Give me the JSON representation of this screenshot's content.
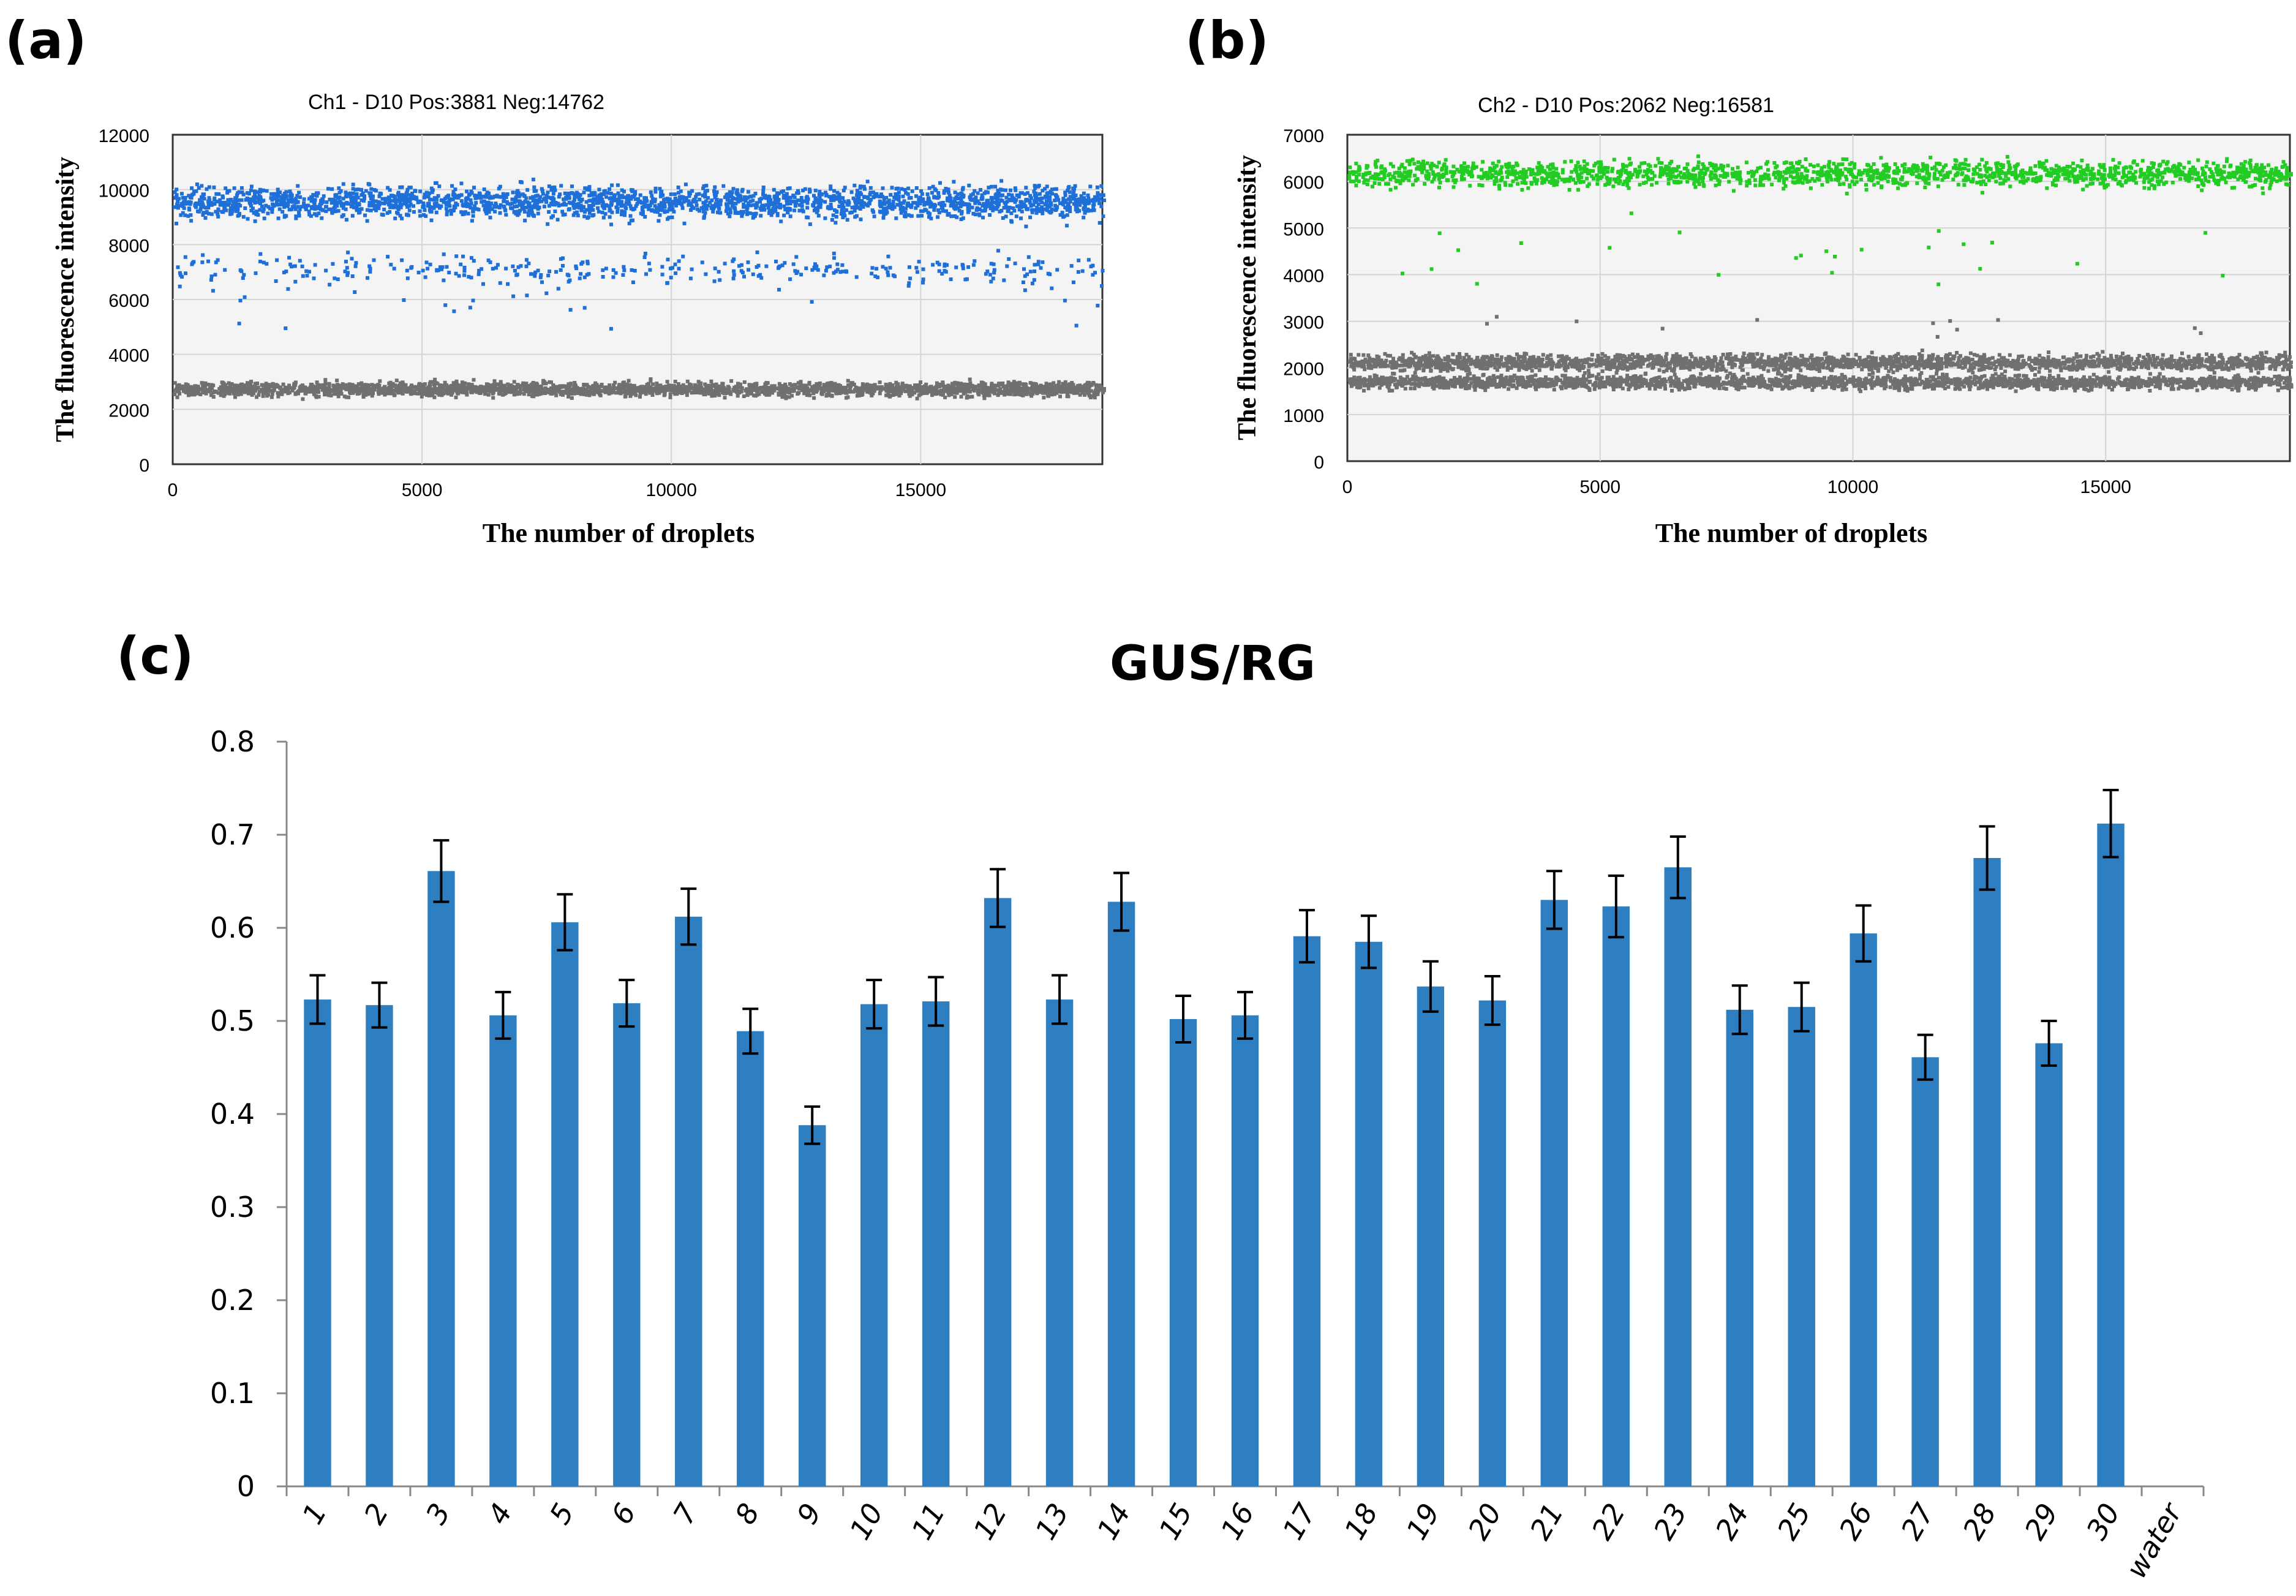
{
  "colors": {
    "ch1_positive": "#1f6fd8",
    "ch2_positive": "#22cc22",
    "negative": "#707070",
    "bar": "#2e7fc1",
    "plot_bg": "#f4f4f4",
    "grid": "#d4d4d4"
  },
  "chart_data": [
    {
      "id": "a",
      "type": "scatter",
      "panel_label": "(a)",
      "title": "Ch1 - D10 Pos:3881 Neg:14762",
      "xlabel": "The number of droplets",
      "ylabel": "The fluorescence intensity",
      "xlim": [
        0,
        18643
      ],
      "ylim": [
        0,
        12000
      ],
      "x_ticks": [
        0,
        5000,
        10000,
        15000
      ],
      "y_ticks": [
        0,
        2000,
        4000,
        6000,
        8000,
        10000,
        12000
      ],
      "grid": true,
      "series": [
        {
          "name": "Positive",
          "count": 3881,
          "main_band": [
            8900,
            10300
          ],
          "sub_band": [
            6500,
            7800
          ],
          "color_key": "ch1_positive"
        },
        {
          "name": "Negative",
          "count": 14762,
          "main_band": [
            2500,
            3100
          ],
          "color_key": "negative"
        }
      ]
    },
    {
      "id": "b",
      "type": "scatter",
      "panel_label": "(b)",
      "title": "Ch2 - D10 Pos:2062 Neg:16581",
      "xlabel": "The number of droplets",
      "ylabel": "The fluorescence intensity",
      "xlim": [
        0,
        18643
      ],
      "ylim": [
        0,
        7000
      ],
      "x_ticks": [
        0,
        5000,
        10000,
        15000
      ],
      "y_ticks": [
        0,
        1000,
        2000,
        3000,
        4000,
        5000,
        6000,
        7000
      ],
      "grid": true,
      "series": [
        {
          "name": "Positive",
          "count": 2062,
          "main_band": [
            5850,
            6550
          ],
          "color_key": "ch2_positive"
        },
        {
          "name": "Negative",
          "count": 16581,
          "bands": [
            [
              1550,
              1900
            ],
            [
              1950,
              2350
            ]
          ],
          "color_key": "negative"
        }
      ]
    },
    {
      "id": "c",
      "type": "bar",
      "panel_label": "(c)",
      "title": "GUS/RG",
      "xlabel": "",
      "ylabel": "",
      "ylim": [
        0,
        0.8
      ],
      "y_ticks": [
        0,
        0.1,
        0.2,
        0.3,
        0.4,
        0.5,
        0.6,
        0.7,
        0.8
      ],
      "y_tick_labels": [
        "0",
        "0.1",
        "0.2",
        "0.3",
        "0.4",
        "0.5",
        "0.6",
        "0.7",
        "0.8"
      ],
      "categories": [
        "1",
        "2",
        "3",
        "4",
        "5",
        "6",
        "7",
        "8",
        "9",
        "10",
        "11",
        "12",
        "13",
        "14",
        "15",
        "16",
        "17",
        "18",
        "19",
        "20",
        "21",
        "22",
        "23",
        "24",
        "25",
        "26",
        "27",
        "28",
        "29",
        "30",
        "water"
      ],
      "values": [
        0.523,
        0.517,
        0.661,
        0.506,
        0.606,
        0.519,
        0.612,
        0.489,
        0.388,
        0.518,
        0.521,
        0.632,
        0.523,
        0.628,
        0.502,
        0.506,
        0.591,
        0.585,
        0.537,
        0.522,
        0.63,
        0.623,
        0.665,
        0.512,
        0.515,
        0.594,
        0.461,
        0.675,
        0.476,
        0.712,
        0
      ],
      "errors": [
        0.026,
        0.024,
        0.033,
        0.025,
        0.03,
        0.025,
        0.03,
        0.024,
        0.02,
        0.026,
        0.026,
        0.031,
        0.026,
        0.031,
        0.025,
        0.025,
        0.028,
        0.028,
        0.027,
        0.026,
        0.031,
        0.033,
        0.033,
        0.026,
        0.026,
        0.03,
        0.024,
        0.034,
        0.024,
        0.036,
        0
      ]
    }
  ]
}
